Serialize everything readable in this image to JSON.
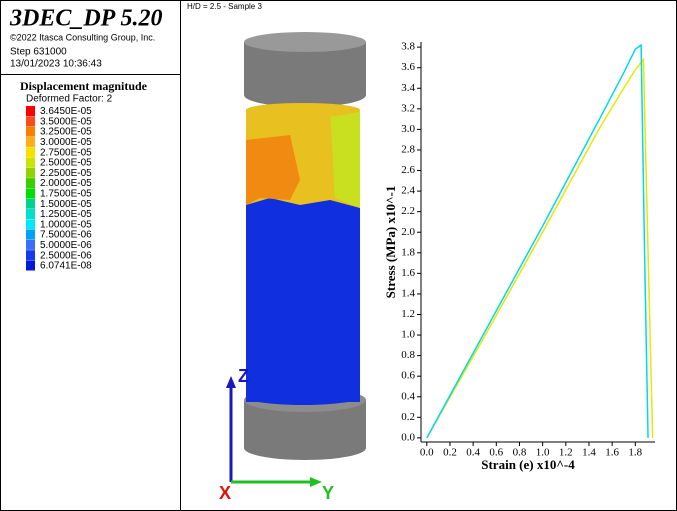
{
  "header": {
    "title": "3DEC_DP 5.20",
    "copyright": "©2022 Itasca Consulting Group, Inc.",
    "step": "Step 631000",
    "timestamp": "13/01/2023 10:36:43"
  },
  "legend": {
    "title": "Displacement magnitude",
    "subtitle": "Deformed Factor: 2",
    "entries": [
      {
        "label": "3.6450E-05",
        "color": "#ff0000"
      },
      {
        "label": "3.5000E-05",
        "color": "#ff4a1a"
      },
      {
        "label": "3.2500E-05",
        "color": "#ff7f00"
      },
      {
        "label": "3.0000E-05",
        "color": "#ffae19"
      },
      {
        "label": "2.7500E-05",
        "color": "#f5e000"
      },
      {
        "label": "2.5000E-05",
        "color": "#c8e600"
      },
      {
        "label": "2.2500E-05",
        "color": "#8fd400"
      },
      {
        "label": "2.0000E-05",
        "color": "#3ccf00"
      },
      {
        "label": "1.7500E-05",
        "color": "#00e000"
      },
      {
        "label": "1.5000E-05",
        "color": "#00d48a"
      },
      {
        "label": "1.2500E-05",
        "color": "#00e0c8"
      },
      {
        "label": "1.0000E-05",
        "color": "#00e8ff"
      },
      {
        "label": "7.5000E-06",
        "color": "#00a0ff"
      },
      {
        "label": "5.0000E-06",
        "color": "#3a6cff"
      },
      {
        "label": "2.5000E-06",
        "color": "#1238f0"
      },
      {
        "label": "6.0741E-08",
        "color": "#0018d8"
      }
    ]
  },
  "view": {
    "title": "H/D = 2.5 - Sample 3",
    "axes_triad": {
      "z": "Z",
      "x": "X",
      "y": "Y"
    }
  },
  "chart_data": {
    "type": "line",
    "x_label": "Strain (e) x10^-4",
    "y_label": "Stress (MPa) x10^-1",
    "xlim": [
      -0.05,
      1.97
    ],
    "ylim": [
      -0.04,
      3.85
    ],
    "xticks": [
      {
        "value": 0,
        "label": "0.0"
      },
      0.2,
      0.4,
      0.6,
      0.8,
      {
        "value": 1,
        "label": "1.0"
      },
      1.2,
      1.4,
      1.6,
      1.8
    ],
    "yticks": [
      {
        "value": 0,
        "label": "0.0"
      },
      0.2,
      0.4,
      0.6,
      0.8,
      {
        "value": 1,
        "label": "1.0"
      },
      1.2,
      1.4,
      1.6,
      1.8,
      {
        "value": 2,
        "label": "2.0"
      },
      2.2,
      2.4,
      2.6,
      2.8,
      {
        "value": 3,
        "label": "3.0"
      },
      3.2,
      3.4,
      3.6,
      3.8
    ],
    "series": [
      {
        "color": "#00d8f0",
        "x": [
          0,
          0.5,
          1.0,
          1.5,
          1.7,
          1.8,
          1.85,
          1.88,
          1.91
        ],
        "values": [
          0,
          1.03,
          2.06,
          3.12,
          3.55,
          3.78,
          3.82,
          1.8,
          0
        ]
      },
      {
        "color": "#e8e800",
        "x": [
          0,
          0.5,
          1.0,
          1.5,
          1.7,
          1.8,
          1.87,
          1.91,
          1.95
        ],
        "values": [
          0,
          0.99,
          2.0,
          3.03,
          3.4,
          3.58,
          3.68,
          1.8,
          0
        ]
      }
    ]
  }
}
